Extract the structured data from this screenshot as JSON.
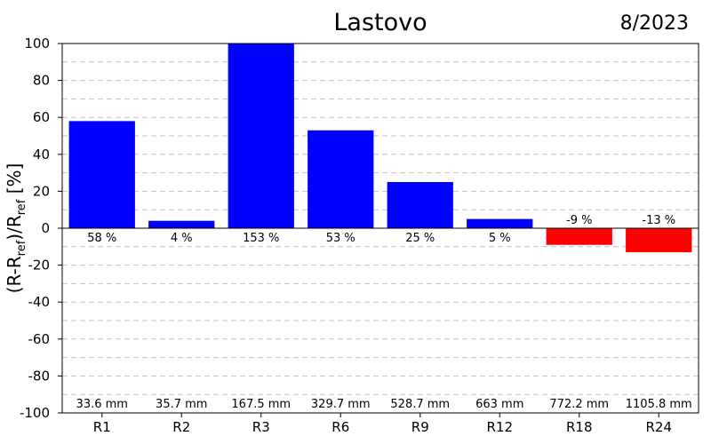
{
  "chart_data": {
    "type": "bar",
    "title": "Lastovo",
    "date_label": "8/2023",
    "categories": [
      "R1",
      "R2",
      "R3",
      "R6",
      "R9",
      "R12",
      "R18",
      "R24"
    ],
    "values": [
      58,
      4,
      153,
      53,
      25,
      5,
      -9,
      -13
    ],
    "value_labels": [
      "58 %",
      "4 %",
      "153 %",
      "53 %",
      "25 %",
      "5 %",
      "-9 %",
      "-13 %"
    ],
    "amount_labels": [
      "33.6 mm",
      "35.7 mm",
      "167.5 mm",
      "329.7 mm",
      "528.7 mm",
      "663 mm",
      "772.2 mm",
      "1105.8 mm"
    ],
    "ylabel": "(R-Rref)/Rref [%]",
    "ylabel_parts": [
      "(R-R",
      "ref",
      ")/R",
      "ref",
      " [%]"
    ],
    "ylim": [
      -100,
      100
    ],
    "yticks": [
      100,
      80,
      60,
      40,
      20,
      0,
      -20,
      -40,
      -60,
      -80,
      -100
    ],
    "grid": true,
    "colors": {
      "positive": "#0000ff",
      "negative": "#ff0000"
    }
  }
}
